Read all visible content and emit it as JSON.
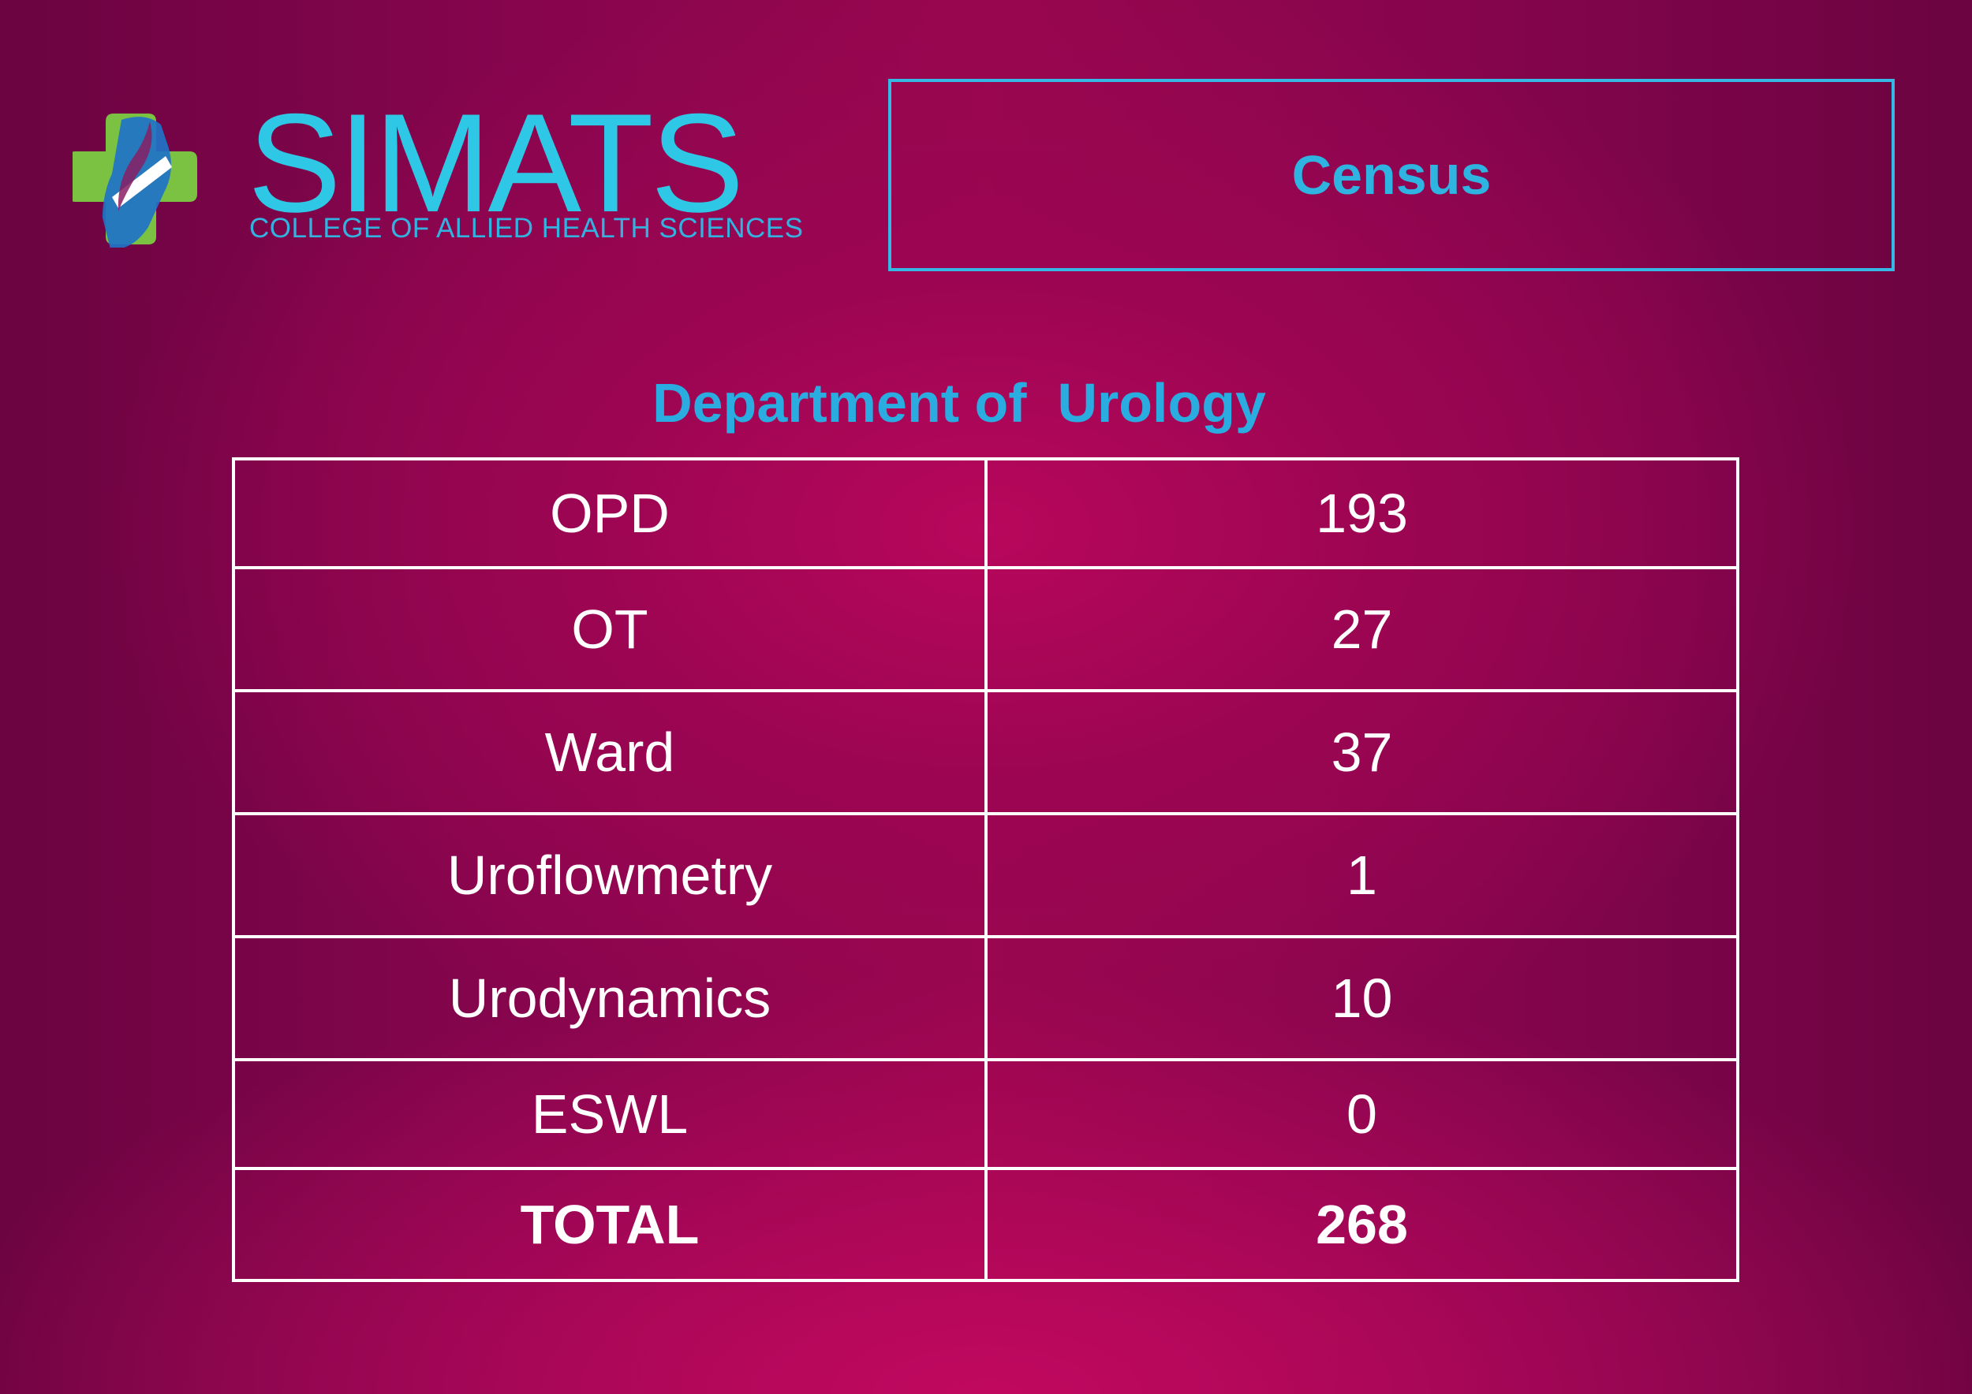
{
  "logo": {
    "brand": "SIMATS",
    "tagline": "COLLEGE OF ALLIED HEALTH SCIENCES",
    "icon": "medical-cross-logo",
    "colors": {
      "green": "#7cc242",
      "blue": "#1e73c8",
      "text": "#2fc7e6"
    }
  },
  "header": {
    "title": "Census"
  },
  "department": {
    "title": "Department of  Urology"
  },
  "table": {
    "rows": [
      {
        "label": "OPD",
        "value": "193"
      },
      {
        "label": "OT",
        "value": "27"
      },
      {
        "label": "Ward",
        "value": "37"
      },
      {
        "label": "Uroflowmetry",
        "value": "1"
      },
      {
        "label": "Urodynamics",
        "value": "10"
      },
      {
        "label": "ESWL",
        "value": "0"
      }
    ],
    "total": {
      "label": "TOTAL",
      "value": "268"
    }
  },
  "colors": {
    "accent": "#2fb4e2",
    "background": "#8a0550",
    "table_border": "#ffffff"
  }
}
